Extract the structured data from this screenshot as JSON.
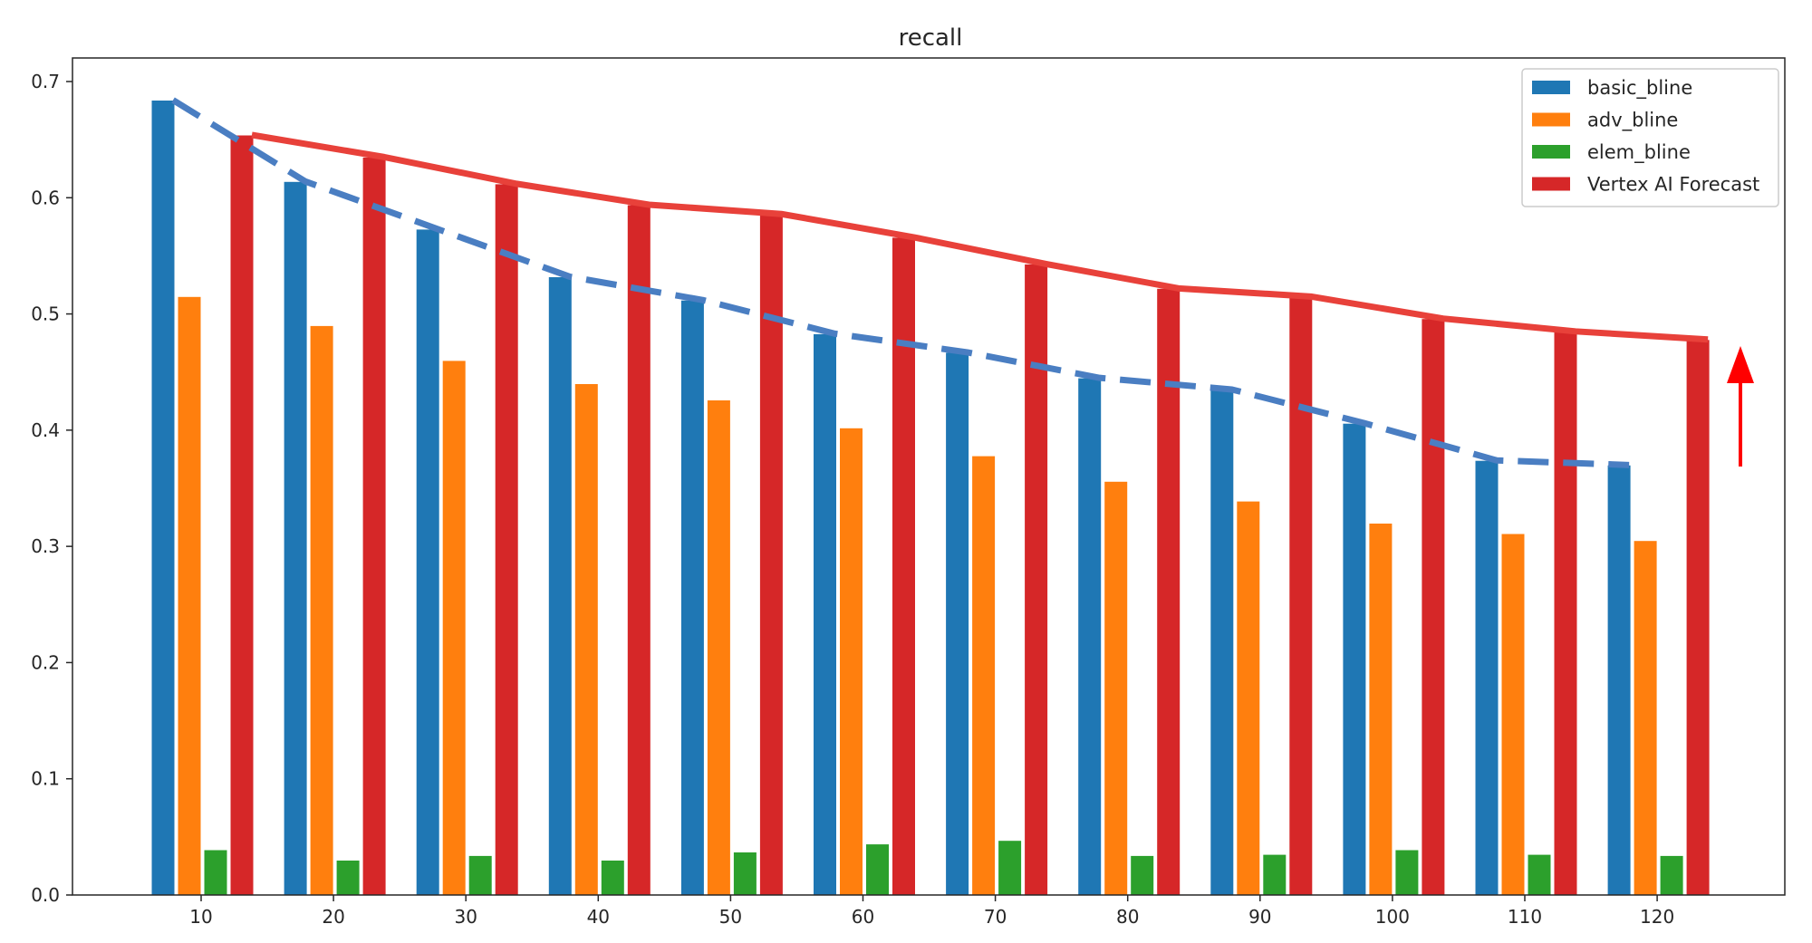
{
  "chart_data": {
    "type": "bar",
    "title": "recall",
    "xlabel": "",
    "ylabel": "",
    "ylim": [
      0,
      0.72
    ],
    "yticks": [
      0.0,
      0.1,
      0.2,
      0.3,
      0.4,
      0.5,
      0.6,
      0.7
    ],
    "ytick_labels": [
      "0.0",
      "0.1",
      "0.2",
      "0.3",
      "0.4",
      "0.5",
      "0.6",
      "0.7"
    ],
    "categories": [
      "10",
      "20",
      "30",
      "40",
      "50",
      "60",
      "70",
      "80",
      "90",
      "100",
      "110",
      "120"
    ],
    "series": [
      {
        "name": "basic_bline",
        "color": "#1f77b4",
        "values": [
          0.684,
          0.614,
          0.573,
          0.532,
          0.512,
          0.483,
          0.467,
          0.445,
          0.435,
          0.406,
          0.374,
          0.37
        ]
      },
      {
        "name": "adv_bline",
        "color": "#ff7f0e",
        "values": [
          0.515,
          0.49,
          0.46,
          0.44,
          0.426,
          0.402,
          0.378,
          0.356,
          0.339,
          0.32,
          0.311,
          0.305
        ]
      },
      {
        "name": "elem_bline",
        "color": "#2ca02c",
        "values": [
          0.039,
          0.03,
          0.034,
          0.03,
          0.037,
          0.044,
          0.047,
          0.034,
          0.035,
          0.039,
          0.035,
          0.034
        ]
      },
      {
        "name": "Vertex AI Forecast",
        "color": "#d62728",
        "values": [
          0.654,
          0.635,
          0.612,
          0.594,
          0.586,
          0.566,
          0.543,
          0.522,
          0.515,
          0.496,
          0.485,
          0.478
        ]
      }
    ],
    "legend_position": "top-right",
    "annotations": {
      "dashed_trend_color": "#4a7ec2",
      "solid_trend_color": "#e8413a",
      "arrow_color": "#ff0000",
      "arrow_direction": "up"
    }
  }
}
